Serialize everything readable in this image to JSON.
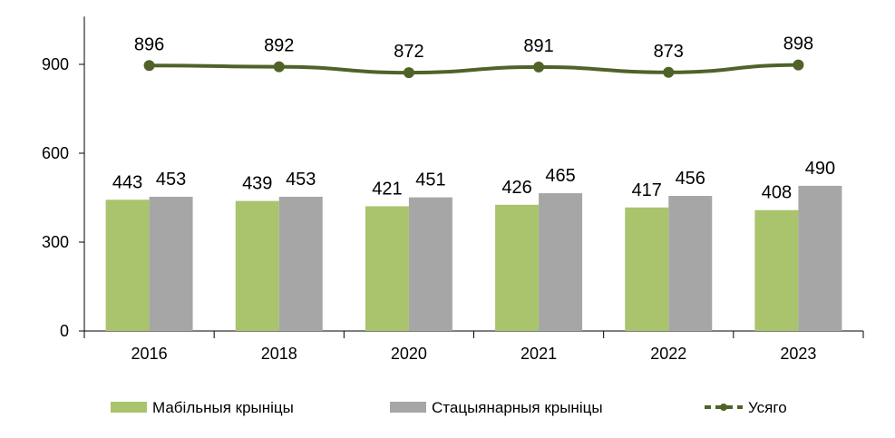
{
  "chart_data": {
    "type": "bar",
    "categories": [
      "2016",
      "2018",
      "2020",
      "2021",
      "2022",
      "2023"
    ],
    "series": [
      {
        "name": "Мабільныя крыніцы",
        "kind": "bar",
        "color": "#a9c46c",
        "values": [
          443,
          439,
          421,
          426,
          417,
          408
        ]
      },
      {
        "name": "Стацыянарныя крыніцы",
        "kind": "bar",
        "color": "#a6a6a6",
        "values": [
          453,
          453,
          451,
          465,
          456,
          490
        ]
      },
      {
        "name": "Усяго",
        "kind": "line",
        "color": "#4f6228",
        "values": [
          896,
          892,
          872,
          891,
          873,
          898
        ]
      }
    ],
    "y_ticks": [
      "0",
      "300",
      "600",
      "900"
    ],
    "ylim": [
      0,
      1000
    ],
    "grid": false,
    "legend_position": "bottom"
  }
}
